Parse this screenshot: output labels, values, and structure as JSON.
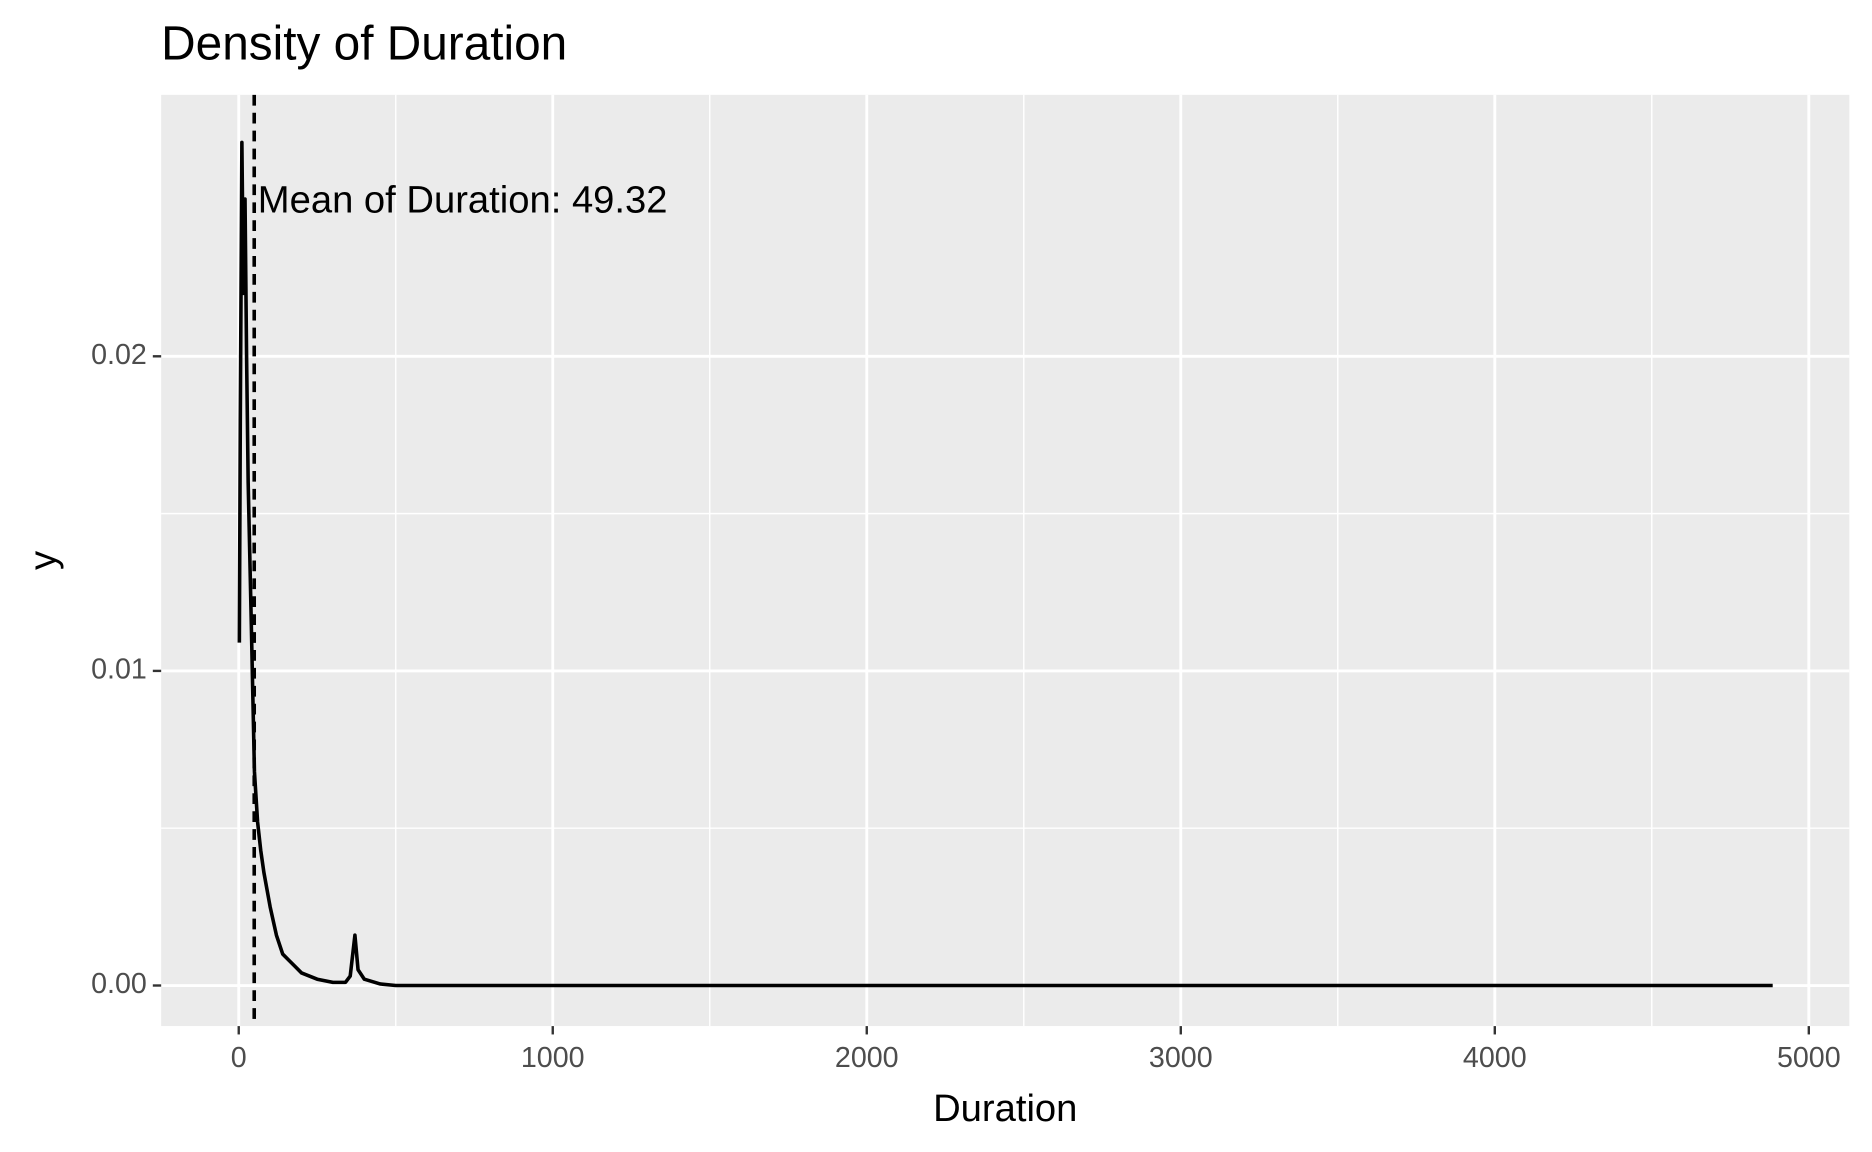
{
  "chart_data": {
    "type": "density",
    "title": "Density of Duration",
    "x_label": "Duration",
    "y_label": "y",
    "annotation": "Mean of Duration: 49.32",
    "mean": 49.32,
    "x": [
      2,
      5,
      10,
      15,
      20,
      25,
      30,
      40,
      50,
      60,
      70,
      80,
      100,
      120,
      140,
      160,
      180,
      200,
      250,
      300,
      340,
      355,
      370,
      380,
      400,
      450,
      500,
      1000,
      2000,
      3000,
      4000,
      4885
    ],
    "series": [
      {
        "name": "Duration",
        "color": "#000000",
        "values": [
          0.0109,
          0.018,
          0.0268,
          0.022,
          0.025,
          0.02,
          0.016,
          0.0115,
          0.0068,
          0.0052,
          0.0043,
          0.0036,
          0.0025,
          0.0016,
          0.001,
          0.0008,
          0.0006,
          0.0004,
          0.0002,
          0.0001,
          0.0001,
          0.0003,
          0.0016,
          0.0005,
          0.0002,
          5e-05,
          0,
          0,
          0,
          0,
          0,
          0
        ]
      }
    ],
    "xlim": [
      -247,
      5129
    ],
    "ylim": [
      -0.00129,
      0.02831
    ],
    "xticks": [
      0,
      1000,
      2000,
      3000,
      4000,
      5000
    ],
    "yticks": [
      {
        "value": 0,
        "label": "0.00"
      },
      {
        "value": 0.01,
        "label": "0.01"
      },
      {
        "value": 0.02,
        "label": "0.02"
      }
    ],
    "grid": true
  }
}
